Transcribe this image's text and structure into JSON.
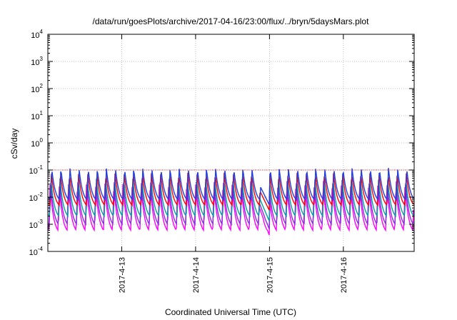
{
  "chart_data": {
    "type": "line",
    "title": "/data/run/goesPlots/archive/2017-04-16/23:00/flux/../bryn/5daysMars.plot",
    "xlabel": "Coordinated Universal Time (UTC)",
    "ylabel": "cSv/day",
    "yscale": "log",
    "ylim": [
      0.0001,
      10000
    ],
    "y_ticks": [
      {
        "base": "10",
        "exp": "-4",
        "value": 0.0001
      },
      {
        "base": "10",
        "exp": "-3",
        "value": 0.001
      },
      {
        "base": "10",
        "exp": "-2",
        "value": 0.01
      },
      {
        "base": "10",
        "exp": "-1",
        "value": 0.1
      },
      {
        "base": "10",
        "exp": "0",
        "value": 1
      },
      {
        "base": "10",
        "exp": "1",
        "value": 10
      },
      {
        "base": "10",
        "exp": "2",
        "value": 100
      },
      {
        "base": "10",
        "exp": "3",
        "value": 1000
      },
      {
        "base": "10",
        "exp": "4",
        "value": 10000
      }
    ],
    "xlim": [
      "2017-04-12 00:00",
      "2017-04-16 23:00"
    ],
    "x_ticks": [
      "2017-4-13",
      "2017-4-14",
      "2017-4-15",
      "2017-4-16"
    ],
    "grid": true,
    "legend": "none",
    "reference_line": {
      "value": 0.1,
      "color": "#e41a1c"
    },
    "series": [
      {
        "color": "#ff00ff",
        "peak": 0.03,
        "trough": 0.0006
      },
      {
        "color": "#8b2be2",
        "peak": 0.04,
        "trough": 0.001
      },
      {
        "color": "#00a0a0",
        "peak": 0.05,
        "trough": 0.002
      },
      {
        "color": "#ff0000",
        "peak": 0.08,
        "trough": 0.005
      },
      {
        "color": "#1f3fe0",
        "peak": 0.12,
        "trough": 0.008
      }
    ]
  }
}
